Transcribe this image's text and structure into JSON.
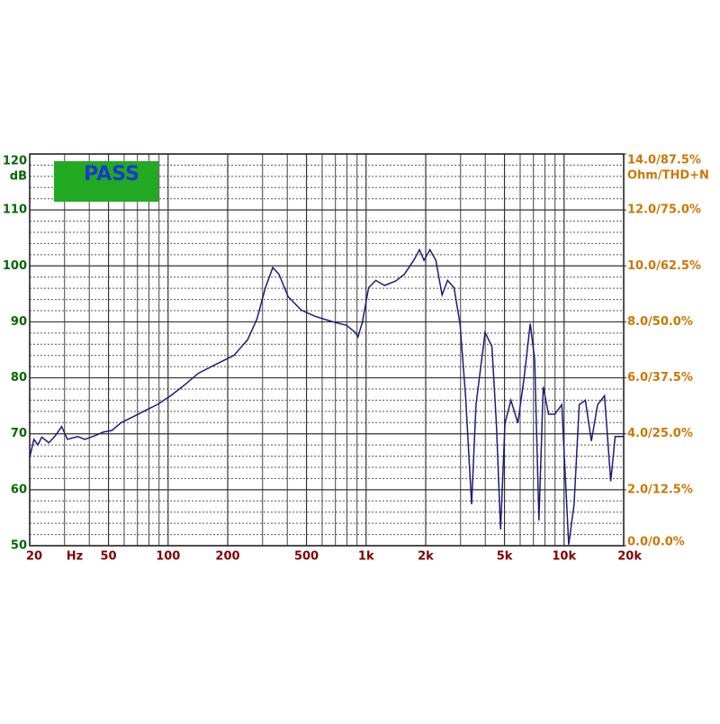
{
  "status": "PASS",
  "chart_data": {
    "type": "line",
    "xlabel": "Hz",
    "ylabel": "dB",
    "y2label": "Ohm/THD+N",
    "xscale": "log",
    "xlim": [
      20,
      20000
    ],
    "ylim": [
      50,
      120
    ],
    "y2lim": [
      0,
      14
    ],
    "xticks": [
      20,
      50,
      100,
      200,
      500,
      {
        "value": 1000,
        "label": "1k"
      },
      {
        "value": 2000,
        "label": "2k"
      },
      {
        "value": 5000,
        "label": "5k"
      },
      {
        "value": 10000,
        "label": "10k"
      },
      {
        "value": 20000,
        "label": "20k"
      }
    ],
    "yticks": [
      50,
      60,
      70,
      80,
      90,
      100,
      110,
      120
    ],
    "y2ticks": [
      {
        "value": 0,
        "label": "0.0/0.0%"
      },
      {
        "value": 2,
        "label": "2.0/12.5%"
      },
      {
        "value": 4,
        "label": "4.0/25.0%"
      },
      {
        "value": 6,
        "label": "6.0/37.5%"
      },
      {
        "value": 8,
        "label": "8.0/50.0%"
      },
      {
        "value": 10,
        "label": "10.0/62.5%"
      },
      {
        "value": 12,
        "label": "12.0/75.0%"
      },
      {
        "value": 14,
        "label": "14.0/87.5%"
      }
    ],
    "grid": true,
    "series": [
      {
        "color": "#1c1c78",
        "x": [
          20,
          21,
          22,
          23,
          25,
          27,
          29,
          31,
          35,
          38,
          43,
          47,
          52,
          58,
          68,
          79,
          88,
          103,
          121,
          142,
          174,
          215,
          252,
          281,
          310,
          338,
          363,
          404,
          471,
          551,
          680,
          795,
          882,
          910,
          958,
          1030,
          1120,
          1240,
          1410,
          1560,
          1740,
          1860,
          1960,
          2100,
          2250,
          2420,
          2580,
          2780,
          2980,
          3180,
          3410,
          3590,
          3990,
          4320,
          4550,
          4780,
          5030,
          5390,
          5840,
          6280,
          6750,
          7100,
          7460,
          7850,
          8350,
          8980,
          9730,
          10550,
          11230,
          11920,
          12800,
          13740,
          14760,
          16010,
          17200,
          18100,
          20000
        ],
        "values": [
          65.8,
          69,
          68,
          69.4,
          68.4,
          69.7,
          71.3,
          69,
          69.5,
          69,
          69.7,
          70.3,
          70.6,
          72,
          73.2,
          74.4,
          75.2,
          76.8,
          78.7,
          80.8,
          82.4,
          84,
          86.8,
          90.5,
          96.1,
          99.7,
          98.5,
          94.5,
          92.1,
          91,
          90,
          89.4,
          88.1,
          87.3,
          90,
          96.1,
          97.4,
          96.5,
          97.3,
          98.5,
          101,
          102.9,
          101,
          102.9,
          101,
          94.8,
          97.4,
          96.1,
          89.7,
          76.8,
          57.4,
          75.2,
          88.1,
          85.6,
          71.9,
          52.9,
          71.9,
          76,
          71.9,
          80,
          89.7,
          83.2,
          54.5,
          78.4,
          73.5,
          73.5,
          75.2,
          50.2,
          57.4,
          75.2,
          76,
          68.7,
          75.2,
          76.8,
          61.5,
          69.5,
          69.5
        ]
      }
    ]
  }
}
